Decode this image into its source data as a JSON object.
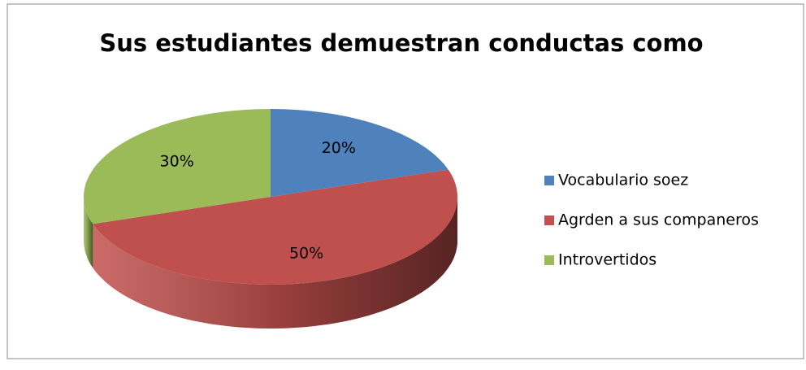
{
  "chart_data": {
    "type": "pie",
    "title": "Sus estudiantes demuestran conductas como",
    "categories": [
      "Vocabulario soez",
      "Agrden a sus companeros",
      "Introvertidos"
    ],
    "values": [
      20,
      50,
      30
    ],
    "value_labels": [
      "20%",
      "50%",
      "30%"
    ],
    "colors": [
      "#4f81bd",
      "#c0504d",
      "#9bbb59"
    ],
    "legend": "right"
  }
}
